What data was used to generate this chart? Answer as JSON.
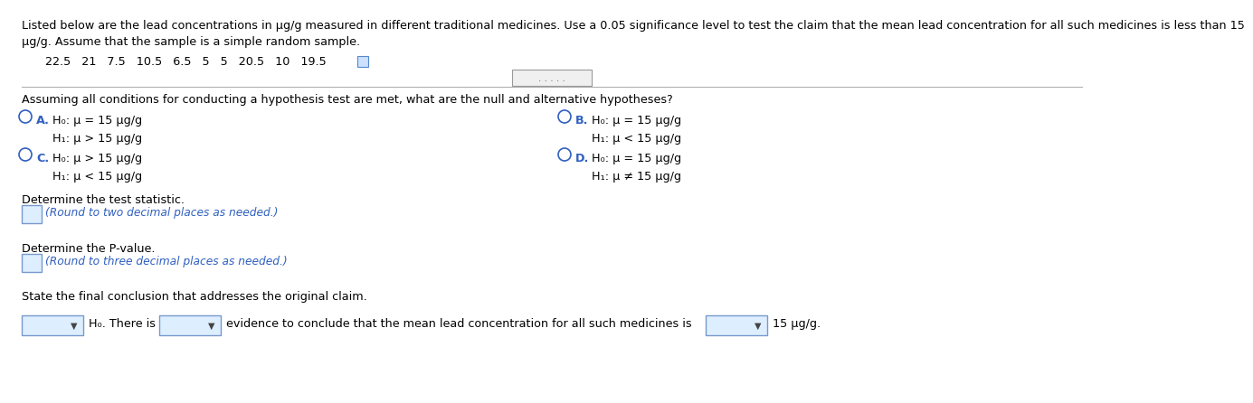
{
  "line1": "Listed below are the lead concentrations in μg/g measured in different traditional medicines. Use a 0.05 significance level to test the claim that the mean lead concentration for all such medicines is less than 15",
  "line2": "μg/g. Assume that the sample is a simple random sample.",
  "data_values": "22.5   21   7.5   10.5   6.5   5   5   20.5   10   19.5",
  "question_text": "Assuming all conditions for conducting a hypothesis test are met, what are the null and alternative hypotheses?",
  "option_A_label": "A.",
  "option_A_H0": "H₀: μ = 15 μg/g",
  "option_A_H1": "H₁: μ > 15 μg/g",
  "option_B_label": "B.",
  "option_B_H0": "H₀: μ = 15 μg/g",
  "option_B_H1": "H₁: μ < 15 μg/g",
  "option_C_label": "C.",
  "option_C_H0": "H₀: μ > 15 μg/g",
  "option_C_H1": "H₁: μ < 15 μg/g",
  "option_D_label": "D.",
  "option_D_H0": "H₀: μ = 15 μg/g",
  "option_D_H1": "H₁: μ ≠ 15 μg/g",
  "stat_label": "Determine the test statistic.",
  "stat_hint": "(Round to two decimal places as needed.)",
  "pval_label": "Determine the P-value.",
  "pval_hint": "(Round to three decimal places as needed.)",
  "conclusion_label": "State the final conclusion that addresses the original claim.",
  "conclusion_prefix": "H₀. There is",
  "conclusion_middle": "evidence to conclude that the mean lead concentration for all such medicines is",
  "conclusion_end": "15 μg/g.",
  "bg_color": "#ffffff",
  "text_color": "#000000",
  "blue_color": "#3060c0",
  "hint_color": "#3060c0",
  "sep_color": "#aaaaaa",
  "box_edge_color": "#7799cc",
  "box_face_color": "#ddeeff",
  "dots_box_edge": "#999999",
  "dots_box_face": "#f0f0f0",
  "title_fontsize": 9.2,
  "body_fontsize": 9.2,
  "small_fontsize": 8.8,
  "radio_color": "#3060c0"
}
